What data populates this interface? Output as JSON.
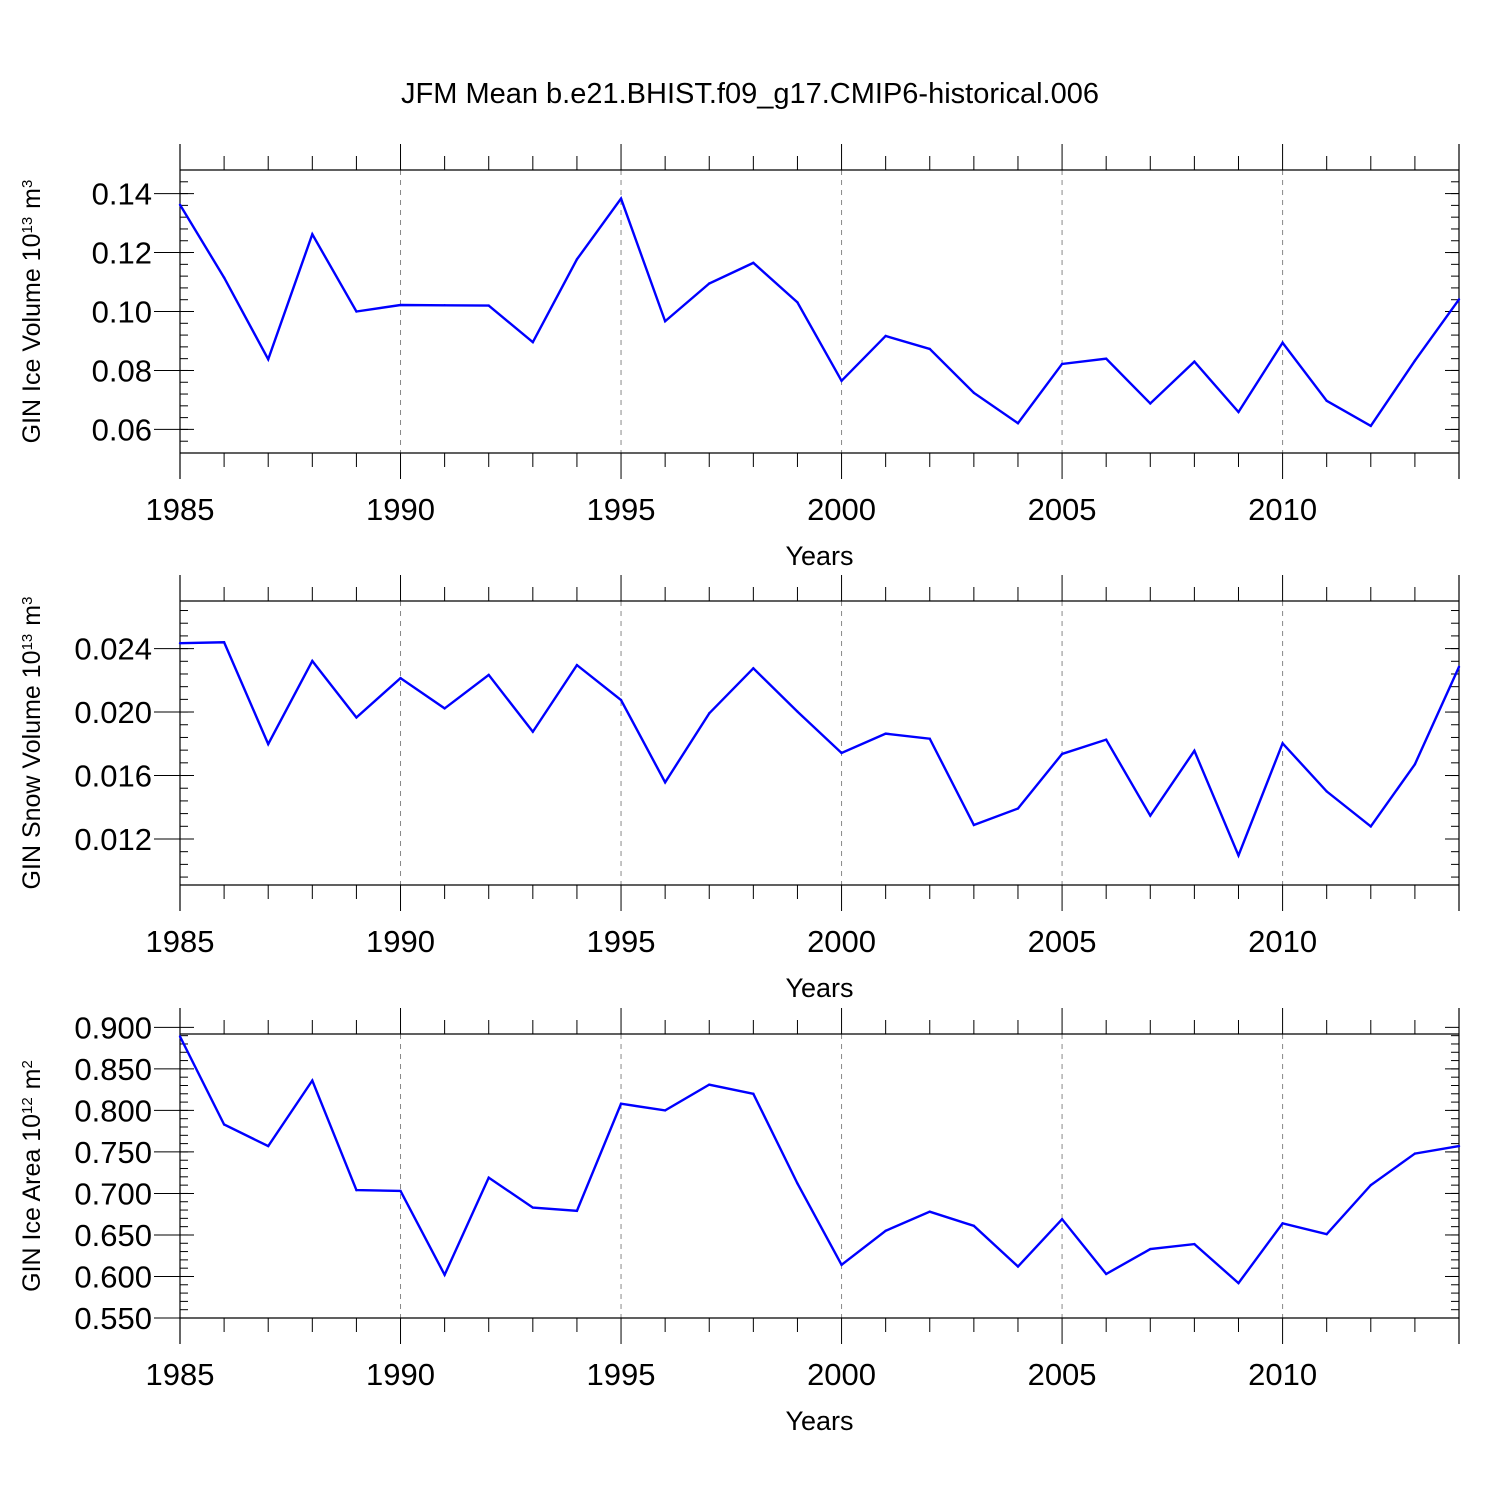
{
  "figure_title": "JFM Mean b.e21.BHIST.f09_g17.CMIP6-historical.006",
  "chart_data": [
    {
      "type": "line",
      "ylabel": {
        "text": "GIN Ice Volume 10",
        "exponent": "13",
        "unit": "m",
        "unit_exponent": "3"
      },
      "xlabel": "Years",
      "xlim": [
        1985,
        2014
      ],
      "ylim": [
        0.052,
        0.148
      ],
      "x_ticks": [
        1985,
        1990,
        1995,
        2000,
        2005,
        2010
      ],
      "x_tick_labels": [
        "1985",
        "1990",
        "1995",
        "2000",
        "2005",
        "2010"
      ],
      "y_ticks": [
        0.06,
        0.08,
        0.1,
        0.12,
        0.14
      ],
      "y_tick_labels": [
        "0.06",
        "0.08",
        "0.10",
        "0.12",
        "0.14"
      ],
      "y_minor_step": 0.004,
      "grid": "vertical dashed at major x ticks",
      "line_color": "#0000ff",
      "series": [
        {
          "name": "GIN Ice Volume",
          "x": [
            1985,
            1986,
            1987,
            1988,
            1989,
            1990,
            1991,
            1992,
            1993,
            1994,
            1995,
            1996,
            1997,
            1998,
            1999,
            2000,
            2001,
            2002,
            2003,
            2004,
            2005,
            2006,
            2007,
            2008,
            2009,
            2010,
            2011,
            2012,
            2013,
            2014
          ],
          "values": [
            0.1362,
            0.1115,
            0.0838,
            0.1262,
            0.1,
            0.1022,
            0.1021,
            0.102,
            0.0896,
            0.1177,
            0.1383,
            0.0967,
            0.1095,
            0.1165,
            0.1031,
            0.0765,
            0.0917,
            0.0873,
            0.0724,
            0.0621,
            0.0822,
            0.084,
            0.0688,
            0.083,
            0.0659,
            0.0894,
            0.0697,
            0.0612,
            0.0833,
            0.1041
          ]
        }
      ]
    },
    {
      "type": "line",
      "ylabel": {
        "text": "GIN Snow Volume 10",
        "exponent": "13",
        "unit": "m",
        "unit_exponent": "3"
      },
      "xlabel": "Years",
      "xlim": [
        1985,
        2014
      ],
      "ylim": [
        0.0091,
        0.027
      ],
      "x_ticks": [
        1985,
        1990,
        1995,
        2000,
        2005,
        2010
      ],
      "x_tick_labels": [
        "1985",
        "1990",
        "1995",
        "2000",
        "2005",
        "2010"
      ],
      "y_ticks": [
        0.012,
        0.016,
        0.02,
        0.024
      ],
      "y_tick_labels": [
        "0.012",
        "0.016",
        "0.020",
        "0.024"
      ],
      "y_minor_step": 0.0008,
      "grid": "vertical dashed at major x ticks",
      "line_color": "#0000ff",
      "series": [
        {
          "name": "GIN Snow Volume",
          "x": [
            1985,
            1986,
            1987,
            1988,
            1989,
            1990,
            1991,
            1992,
            1993,
            1994,
            1995,
            1996,
            1997,
            1998,
            1999,
            2000,
            2001,
            2002,
            2003,
            2004,
            2005,
            2006,
            2007,
            2008,
            2009,
            2010,
            2011,
            2012,
            2013,
            2014
          ],
          "values": [
            0.02434,
            0.0244,
            0.01798,
            0.02322,
            0.01966,
            0.02214,
            0.02023,
            0.02234,
            0.01876,
            0.02296,
            0.02076,
            0.01557,
            0.01992,
            0.02276,
            0.02003,
            0.01742,
            0.01864,
            0.01832,
            0.01288,
            0.01392,
            0.01736,
            0.01826,
            0.01347,
            0.01756,
            0.01096,
            0.01803,
            0.015,
            0.01279,
            0.01671,
            0.02285
          ]
        }
      ]
    },
    {
      "type": "line",
      "ylabel": {
        "text": "GIN Ice Area 10",
        "exponent": "12",
        "unit": "m",
        "unit_exponent": "2"
      },
      "xlabel": "Years",
      "xlim": [
        1985,
        2014
      ],
      "ylim": [
        0.55,
        0.892
      ],
      "x_ticks": [
        1985,
        1990,
        1995,
        2000,
        2005,
        2010
      ],
      "x_tick_labels": [
        "1985",
        "1990",
        "1995",
        "2000",
        "2005",
        "2010"
      ],
      "y_ticks": [
        0.55,
        0.6,
        0.65,
        0.7,
        0.75,
        0.8,
        0.85,
        0.9
      ],
      "y_tick_labels": [
        "0.550",
        "0.600",
        "0.650",
        "0.700",
        "0.750",
        "0.800",
        "0.850",
        "0.900"
      ],
      "y_minor_step": 0.01,
      "grid": "vertical dashed at major x ticks",
      "line_color": "#0000ff",
      "series": [
        {
          "name": "GIN Ice Area",
          "x": [
            1985,
            1986,
            1987,
            1988,
            1989,
            1990,
            1991,
            1992,
            1993,
            1994,
            1995,
            1996,
            1997,
            1998,
            1999,
            2000,
            2001,
            2002,
            2003,
            2004,
            2005,
            2006,
            2007,
            2008,
            2009,
            2010,
            2011,
            2012,
            2013,
            2014
          ],
          "values": [
            0.889,
            0.783,
            0.757,
            0.836,
            0.704,
            0.703,
            0.602,
            0.719,
            0.683,
            0.679,
            0.808,
            0.8,
            0.831,
            0.82,
            0.712,
            0.614,
            0.655,
            0.678,
            0.661,
            0.612,
            0.669,
            0.603,
            0.633,
            0.639,
            0.592,
            0.664,
            0.651,
            0.71,
            0.748,
            0.757
          ]
        }
      ]
    }
  ]
}
